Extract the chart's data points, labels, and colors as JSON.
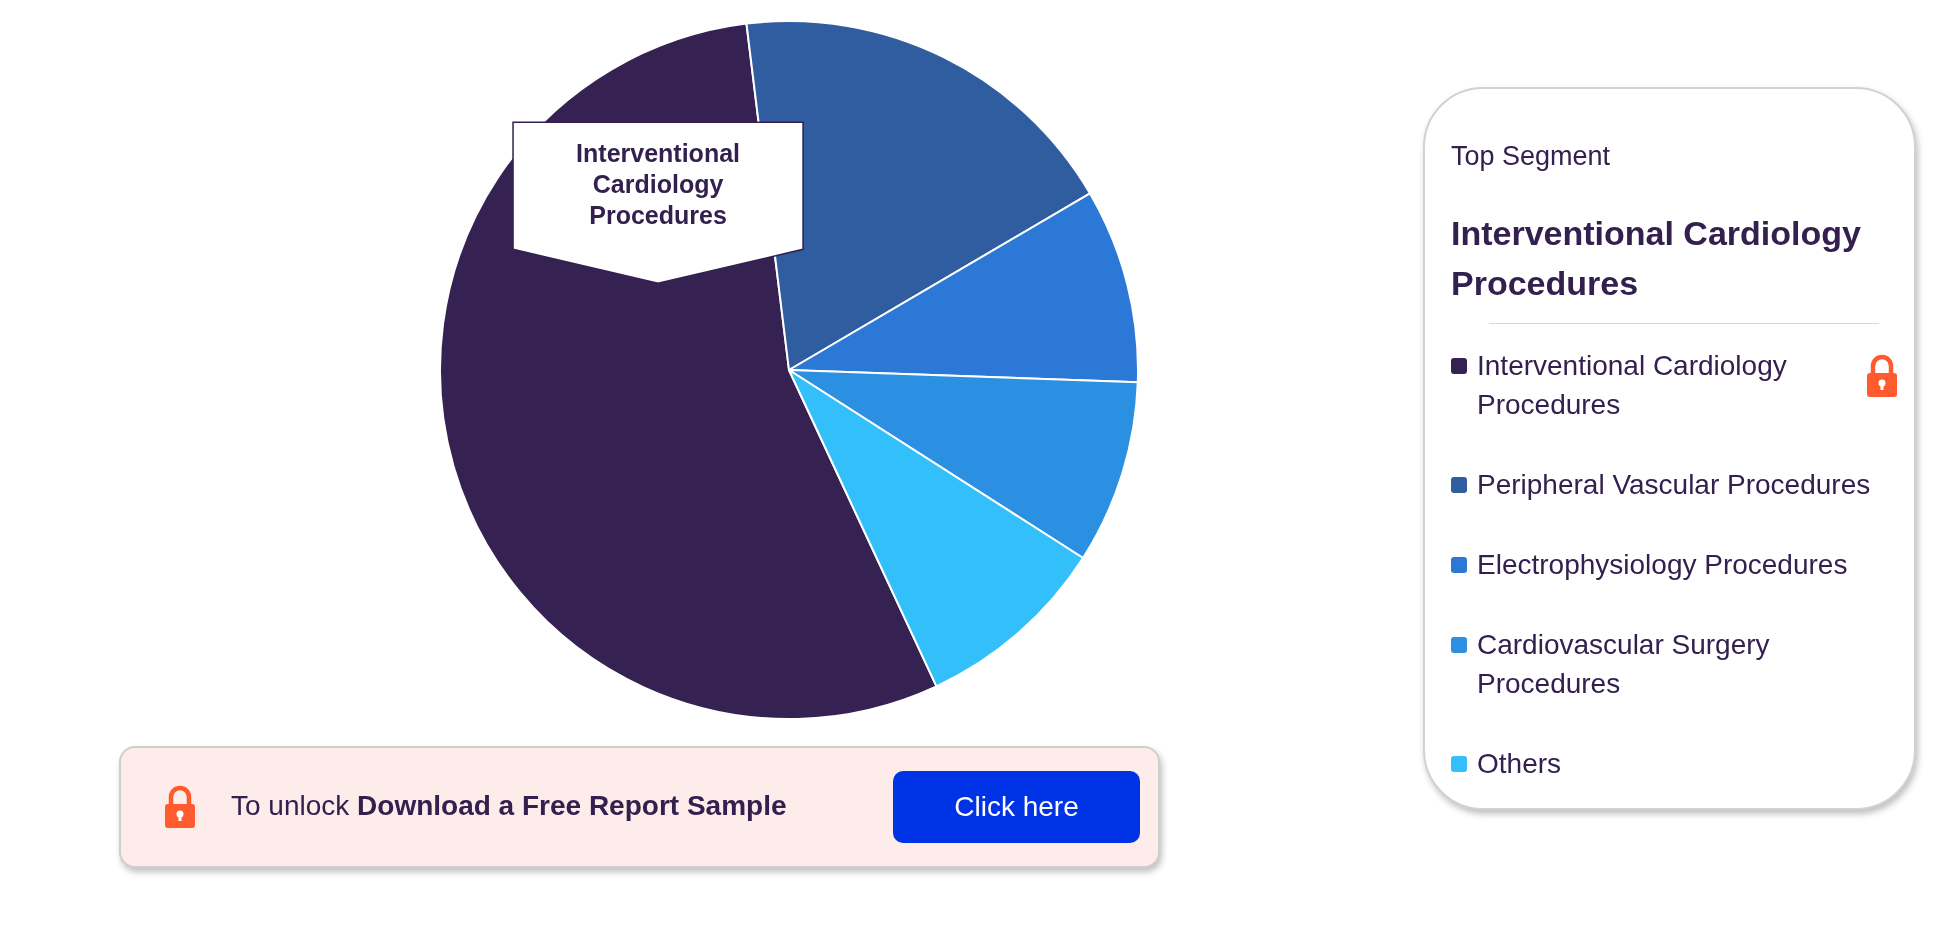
{
  "chart_data": {
    "type": "pie",
    "categories": [
      "Interventional Cardiology Procedures",
      "Peripheral Vascular Procedures",
      "Electrophysiology Procedures",
      "Cardiovascular Surgery Procedures",
      "Others"
    ],
    "values": [
      55,
      18.5,
      9,
      8.5,
      9
    ],
    "colors": [
      "#352252",
      "#2f5d9f",
      "#2b78d6",
      "#2b90e2",
      "#33bffa"
    ],
    "legend": "right",
    "legend_title": "Top Segment",
    "annotations": [
      {
        "text": "Interventional Cardiology Procedures",
        "x": "Interventional Cardiology Procedures"
      },
      "Interventional Cardiology Procedures",
      "To unlock",
      "Download a Free Report Sample",
      "Click here"
    ]
  }
}
